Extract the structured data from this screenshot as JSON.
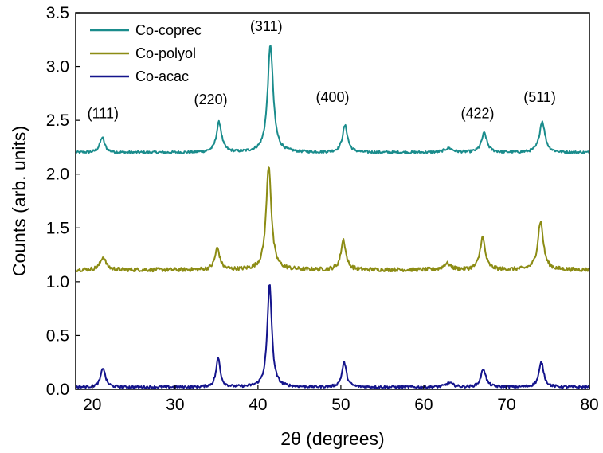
{
  "chart_data": {
    "type": "line",
    "xlabel": "2θ (degrees)",
    "ylabel": "Counts (arb. units)",
    "xlim": [
      18,
      80
    ],
    "ylim": [
      0,
      3.5
    ],
    "xticks": [
      20,
      30,
      40,
      50,
      60,
      70,
      80
    ],
    "yticks": [
      0.0,
      0.5,
      1.0,
      1.5,
      2.0,
      2.5,
      3.0,
      3.5
    ],
    "grid": false,
    "legend_position": "top-left",
    "series": [
      {
        "name": "Co-coprec",
        "color": "#1a8c8c",
        "baseline": 2.2,
        "noise": 0.012,
        "peaks": [
          {
            "x": 21.2,
            "height": 0.14,
            "width": 0.7
          },
          {
            "x": 35.3,
            "height": 0.28,
            "width": 0.75
          },
          {
            "x": 41.5,
            "height": 1.0,
            "width": 0.8
          },
          {
            "x": 50.5,
            "height": 0.25,
            "width": 0.75
          },
          {
            "x": 63.0,
            "height": 0.04,
            "width": 1.2
          },
          {
            "x": 67.3,
            "height": 0.18,
            "width": 0.8
          },
          {
            "x": 74.3,
            "height": 0.29,
            "width": 0.8
          }
        ]
      },
      {
        "name": "Co-polyol",
        "color": "#8c8c14",
        "baseline": 1.11,
        "noise": 0.018,
        "peaks": [
          {
            "x": 21.3,
            "height": 0.12,
            "width": 0.8
          },
          {
            "x": 35.1,
            "height": 0.2,
            "width": 0.7
          },
          {
            "x": 41.3,
            "height": 0.97,
            "width": 0.75
          },
          {
            "x": 50.3,
            "height": 0.28,
            "width": 0.7
          },
          {
            "x": 62.8,
            "height": 0.06,
            "width": 1.0
          },
          {
            "x": 67.1,
            "height": 0.3,
            "width": 0.75
          },
          {
            "x": 74.1,
            "height": 0.45,
            "width": 0.8
          }
        ]
      },
      {
        "name": "Co-acac",
        "color": "#14148c",
        "baseline": 0.02,
        "noise": 0.012,
        "peaks": [
          {
            "x": 21.3,
            "height": 0.18,
            "width": 0.65
          },
          {
            "x": 35.2,
            "height": 0.27,
            "width": 0.6
          },
          {
            "x": 41.4,
            "height": 0.96,
            "width": 0.65
          },
          {
            "x": 50.4,
            "height": 0.23,
            "width": 0.65
          },
          {
            "x": 63.1,
            "height": 0.04,
            "width": 1.0
          },
          {
            "x": 67.2,
            "height": 0.17,
            "width": 0.7
          },
          {
            "x": 74.2,
            "height": 0.23,
            "width": 0.7
          }
        ]
      }
    ],
    "annotations": [
      {
        "text": "(111)",
        "x": 21.3,
        "y": 2.52
      },
      {
        "text": "(220)",
        "x": 34.3,
        "y": 2.65
      },
      {
        "text": "(311)",
        "x": 41.0,
        "y": 3.33
      },
      {
        "text": "(400)",
        "x": 49.0,
        "y": 2.67
      },
      {
        "text": "(422)",
        "x": 66.5,
        "y": 2.52
      },
      {
        "text": "(511)",
        "x": 74.0,
        "y": 2.67
      }
    ]
  }
}
